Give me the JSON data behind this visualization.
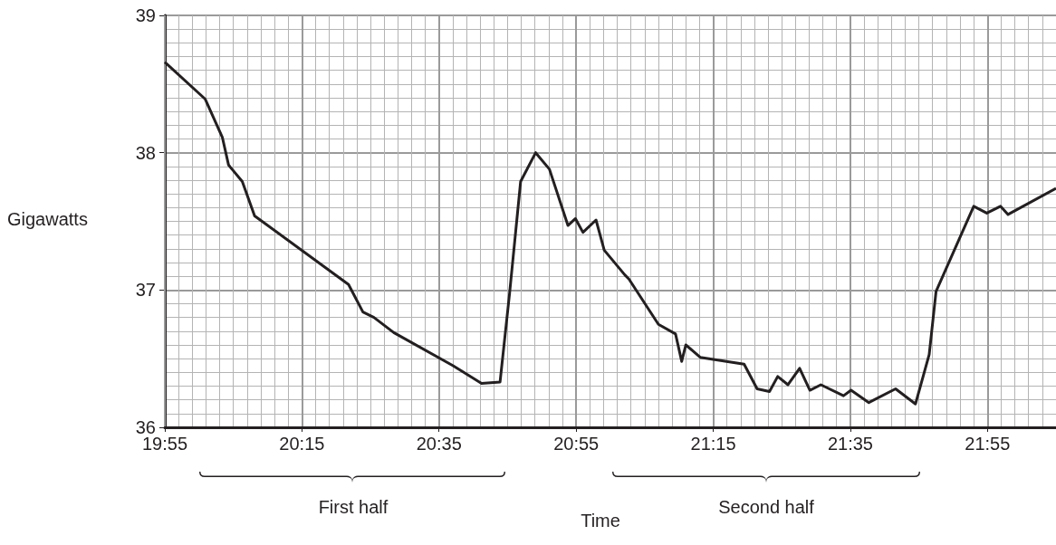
{
  "chart_data": {
    "type": "line",
    "xlabel": "Time",
    "ylabel": "Gigawatts",
    "annotations": [
      "First half",
      "Second half"
    ],
    "x": [
      19.9167,
      20.015,
      20.0567,
      20.0717,
      20.105,
      20.135,
      20.3633,
      20.3983,
      20.425,
      20.4733,
      20.6167,
      20.6867,
      20.7317,
      20.755,
      20.7817,
      20.8183,
      20.8517,
      20.8967,
      20.915,
      20.9333,
      20.965,
      20.985,
      21.035,
      21.045,
      21.1167,
      21.1583,
      21.1733,
      21.1833,
      21.2183,
      21.325,
      21.3567,
      21.3867,
      21.4067,
      21.4317,
      21.46,
      21.485,
      21.5117,
      21.5667,
      21.585,
      21.6283,
      21.6933,
      21.7417,
      21.775,
      21.7917,
      21.8833,
      21.915,
      21.9483,
      21.9667,
      22.0833
    ],
    "series": [
      {
        "color": "#231f20",
        "values": [
          38.66,
          38.39,
          38.11,
          37.91,
          37.79,
          37.54,
          37.04,
          36.84,
          36.8,
          36.69,
          36.45,
          36.32,
          36.33,
          36.98,
          37.79,
          38.0,
          37.88,
          37.47,
          37.52,
          37.42,
          37.51,
          37.29,
          37.11,
          37.08,
          36.75,
          36.68,
          36.48,
          36.6,
          36.51,
          36.46,
          36.28,
          36.26,
          36.37,
          36.31,
          36.43,
          36.27,
          36.31,
          36.23,
          36.27,
          36.18,
          36.28,
          36.17,
          36.53,
          36.99,
          37.61,
          37.56,
          37.61,
          37.55,
          37.74
        ]
      }
    ],
    "xlim": [
      19.9167,
      22.0833
    ],
    "xticks": [
      {
        "value": 19.9167,
        "label": "19:55"
      },
      {
        "value": 20.25,
        "label": "20:15"
      },
      {
        "value": 20.5833,
        "label": "20:35"
      },
      {
        "value": 20.9167,
        "label": "20:55"
      },
      {
        "value": 21.25,
        "label": "21:15"
      },
      {
        "value": 21.5833,
        "label": "21:35"
      },
      {
        "value": 21.9167,
        "label": "21:55"
      }
    ],
    "ylim": [
      36,
      39
    ],
    "yticks": [
      36,
      37,
      38,
      39
    ],
    "grid": true
  }
}
